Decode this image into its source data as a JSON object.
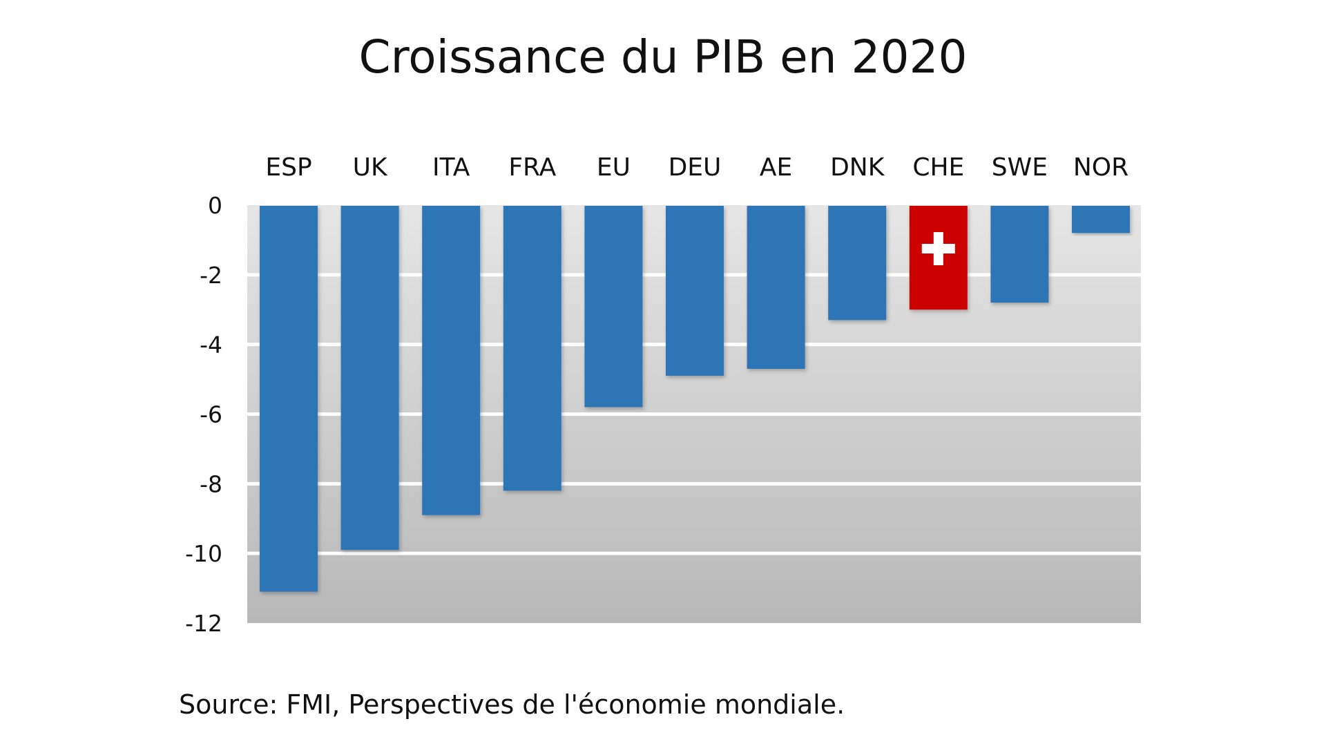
{
  "source": "Source: FMI, Perspectives de l'économie mondiale.",
  "chart_data": {
    "type": "bar",
    "title": "Croissance du PIB en 2020",
    "xlabel": "",
    "ylabel": "",
    "ylim": [
      -12,
      0
    ],
    "yticks": [
      "0",
      "-2",
      "-4",
      "-6",
      "-8",
      "-10",
      "-12"
    ],
    "categories": [
      "ESP",
      "UK",
      "ITA",
      "FRA",
      "EU",
      "DEU",
      "AE",
      "DNK",
      "CHE",
      "SWE",
      "NOR"
    ],
    "values": [
      -11.1,
      -9.9,
      -8.9,
      -8.2,
      -5.8,
      -4.9,
      -4.7,
      -3.3,
      -3.0,
      -2.8,
      -0.8
    ],
    "bar_color": "#2e75b6",
    "highlight": {
      "category": "CHE",
      "color": "#cc0000",
      "icon": "swiss-cross-icon"
    },
    "grid": true,
    "background": "gradient grey bands",
    "category_label_position": "top"
  }
}
